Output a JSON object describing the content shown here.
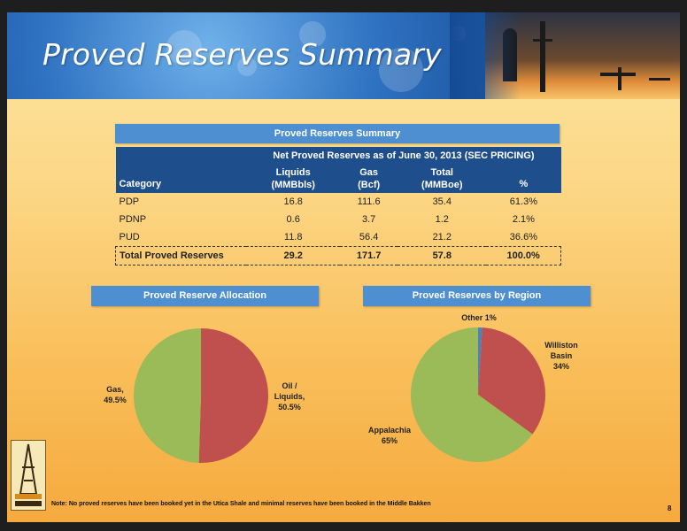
{
  "title": "Proved Reserves Summary",
  "table": {
    "bar_title": "Proved Reserves Summary",
    "group_header": "Net Proved Reserves as of June 30, 2013 (SEC PRICING)",
    "col_category": "Category",
    "col_liquids": [
      "Liquids",
      "(MMBbls)"
    ],
    "col_gas": [
      "Gas",
      "(Bcf)"
    ],
    "col_total": [
      "Total",
      "(MMBoe)"
    ],
    "col_pct": "%",
    "rows": [
      {
        "category": "PDP",
        "liquids": "16.8",
        "gas": "111.6",
        "total": "35.4",
        "pct": "61.3%"
      },
      {
        "category": "PDNP",
        "liquids": "0.6",
        "gas": "3.7",
        "total": "1.2",
        "pct": "2.1%"
      },
      {
        "category": "PUD",
        "liquids": "11.8",
        "gas": "56.4",
        "total": "21.2",
        "pct": "36.6%"
      }
    ],
    "total_row": {
      "category": "Total Proved Reserves",
      "liquids": "29.2",
      "gas": "171.7",
      "total": "57.8",
      "pct": "100.0%"
    }
  },
  "chart_data": [
    {
      "type": "pie",
      "title": "Proved Reserve Allocation",
      "slices": [
        {
          "label": "Oil / Liquids, 50.5%",
          "value": 50.5,
          "color": "#c0504d"
        },
        {
          "label": "Gas, 49.5%",
          "value": 49.5,
          "color": "#9bbb59"
        }
      ]
    },
    {
      "type": "pie",
      "title": "Proved Reserves by Region",
      "slices": [
        {
          "label": "Other 1%",
          "value": 1,
          "color": "#4f81bd"
        },
        {
          "label": "Williston Basin 34%",
          "value": 34,
          "color": "#c0504d"
        },
        {
          "label": "Appalachia 65%",
          "value": 65,
          "color": "#9bbb59"
        }
      ]
    }
  ],
  "pie_labels": {
    "gas": [
      "Gas,",
      "49.5%"
    ],
    "oil": [
      "Oil /",
      "Liquids,",
      "50.5%"
    ],
    "other": "Other 1%",
    "williston": [
      "Williston",
      "Basin",
      "34%"
    ],
    "appalachia": [
      "Appalachia",
      "65%"
    ]
  },
  "note": "Note: No proved reserves have been booked yet in the Utica Shale and minimal reserves have been booked in the Middle Bakken",
  "page_number": "8",
  "colors": {
    "header_blue": "#1f4e8c",
    "bar_blue": "#4e8fd1",
    "oil": "#c0504d",
    "gas": "#9bbb59",
    "other": "#4f81bd"
  }
}
